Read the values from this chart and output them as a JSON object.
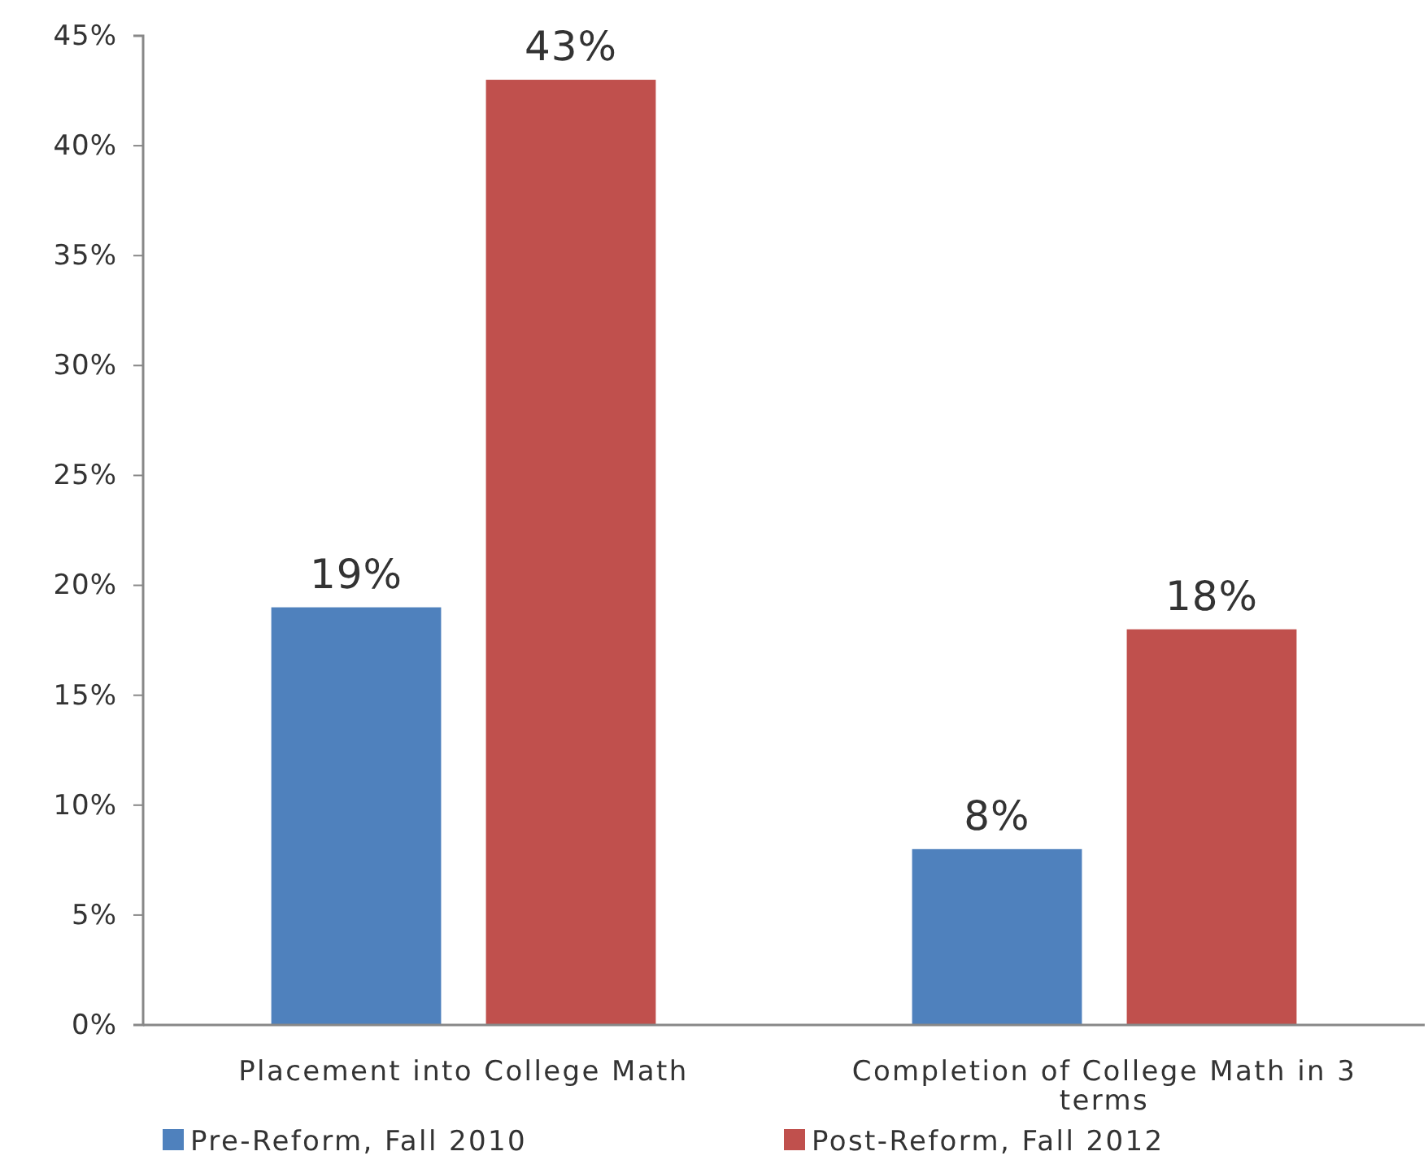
{
  "chart_data": {
    "type": "bar",
    "categories": [
      "Placement into College Math",
      "Completion of College Math in 3 terms"
    ],
    "series": [
      {
        "name": "Pre-Reform, Fall 2010",
        "color": "#4f81bd",
        "values": [
          19,
          8
        ],
        "value_labels": [
          "19%",
          "8%"
        ]
      },
      {
        "name": "Post-Reform, Fall 2012",
        "color": "#c0504d",
        "values": [
          43,
          18
        ],
        "value_labels": [
          "43%",
          "18%"
        ]
      }
    ],
    "ylim": [
      0,
      45
    ],
    "yticks": [
      {
        "value": 0,
        "label": "0%"
      },
      {
        "value": 5,
        "label": "5%"
      },
      {
        "value": 10,
        "label": "10%"
      },
      {
        "value": 15,
        "label": "15%"
      },
      {
        "value": 20,
        "label": "20%"
      },
      {
        "value": 25,
        "label": "25%"
      },
      {
        "value": 30,
        "label": "30%"
      },
      {
        "value": 35,
        "label": "35%"
      },
      {
        "value": 40,
        "label": "40%"
      },
      {
        "value": 45,
        "label": "45%"
      }
    ],
    "grid": false,
    "legend": "bottom"
  }
}
